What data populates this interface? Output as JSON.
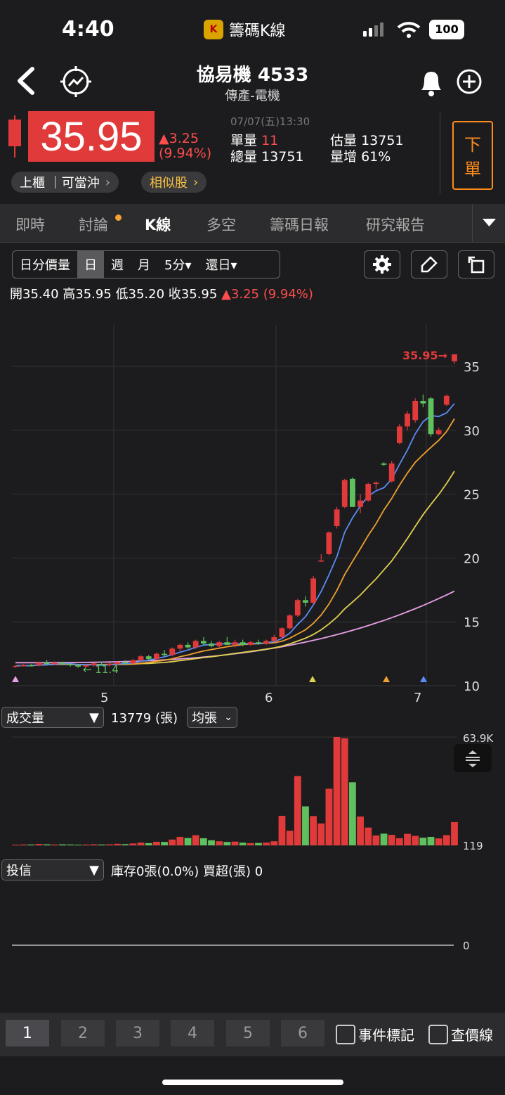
{
  "status": {
    "time": "4:40",
    "app_name": "籌碼K線",
    "battery": "100"
  },
  "header": {
    "title": "協易機 4533",
    "subtitle": "傳產-電機"
  },
  "quote": {
    "price": "35.95",
    "change": "▲3.25",
    "change_pct": "(9.94%)",
    "datetime": "07/07(五)13:30",
    "single_vol_label": "單量",
    "single_vol": "11",
    "est_vol_label": "估量",
    "est_vol": "13751",
    "total_vol_label": "總量",
    "total_vol": "13751",
    "vol_inc_label": "量增",
    "vol_inc": "61%",
    "market_tag": "上櫃 ｜可當沖",
    "similar": "相似股",
    "order_btn_1": "下",
    "order_btn_2": "單"
  },
  "tabs": [
    "即時",
    "討論",
    "K線",
    "多空",
    "籌碼日報",
    "研究報告"
  ],
  "toolbar": {
    "seg": [
      "日分價量",
      "日",
      "週",
      "月",
      "5分▾",
      "還日▾"
    ]
  },
  "ohlc": {
    "open_label": "開",
    "open": "35.40",
    "high_label": "高",
    "high": "35.95",
    "low_label": "低",
    "low": "35.20",
    "close_label": "收",
    "close": "35.95",
    "change": "▲3.25 (9.94%)"
  },
  "chart_data": {
    "type": "candlestick",
    "y_ticks": [
      35,
      30,
      25,
      20,
      15,
      10
    ],
    "x_ticks": [
      "5",
      "6",
      "7"
    ],
    "last_price_label": "35.95",
    "low_label": "11.4",
    "ylim": [
      10,
      38
    ],
    "candles": [
      [
        11.5,
        11.6,
        11.4,
        11.55
      ],
      [
        11.55,
        11.7,
        11.5,
        11.6
      ],
      [
        11.6,
        11.7,
        11.5,
        11.55
      ],
      [
        11.6,
        11.9,
        11.5,
        11.8
      ],
      [
        11.8,
        12.0,
        11.7,
        11.7
      ],
      [
        11.7,
        11.9,
        11.6,
        11.8
      ],
      [
        11.8,
        11.9,
        11.6,
        11.7
      ],
      [
        11.7,
        11.8,
        11.5,
        11.6
      ],
      [
        11.6,
        11.7,
        11.4,
        11.5
      ],
      [
        11.5,
        11.7,
        11.4,
        11.6
      ],
      [
        11.6,
        11.8,
        11.5,
        11.75
      ],
      [
        11.7,
        11.9,
        11.6,
        11.6
      ],
      [
        11.6,
        11.8,
        11.5,
        11.7
      ],
      [
        11.7,
        11.9,
        11.6,
        11.85
      ],
      [
        11.85,
        12.0,
        11.7,
        11.75
      ],
      [
        11.75,
        12.1,
        11.7,
        12.0
      ],
      [
        12.0,
        12.4,
        11.9,
        12.3
      ],
      [
        12.3,
        12.4,
        12.0,
        12.1
      ],
      [
        12.1,
        12.6,
        12.0,
        12.5
      ],
      [
        12.5,
        12.8,
        12.3,
        12.4
      ],
      [
        12.4,
        13.0,
        12.3,
        12.9
      ],
      [
        12.9,
        13.3,
        12.7,
        13.2
      ],
      [
        13.2,
        13.4,
        12.9,
        13.0
      ],
      [
        13.0,
        13.6,
        12.9,
        13.5
      ],
      [
        13.5,
        13.8,
        13.2,
        13.3
      ],
      [
        13.3,
        13.5,
        13.0,
        13.1
      ],
      [
        13.1,
        13.5,
        13.0,
        13.4
      ],
      [
        13.4,
        13.8,
        13.2,
        13.2
      ],
      [
        13.2,
        13.6,
        13.0,
        13.4
      ],
      [
        13.4,
        13.6,
        13.1,
        13.2
      ],
      [
        13.2,
        13.5,
        13.1,
        13.4
      ],
      [
        13.4,
        13.6,
        13.2,
        13.3
      ],
      [
        13.3,
        13.6,
        13.2,
        13.5
      ],
      [
        13.5,
        14.0,
        13.4,
        13.8
      ],
      [
        13.8,
        14.6,
        13.7,
        14.5
      ],
      [
        14.5,
        15.6,
        14.4,
        15.5
      ],
      [
        15.5,
        16.8,
        15.4,
        16.7
      ],
      [
        16.7,
        17.0,
        16.2,
        16.5
      ],
      [
        16.5,
        18.6,
        16.4,
        18.4
      ],
      [
        19.8,
        20.3,
        19.7,
        19.8
      ],
      [
        20.3,
        22.1,
        20.2,
        22.0
      ],
      [
        22.5,
        24.0,
        22.3,
        23.8
      ],
      [
        24.0,
        26.2,
        23.9,
        26.1
      ],
      [
        26.2,
        26.3,
        24.0,
        24.0
      ],
      [
        24.0,
        25.0,
        23.5,
        24.5
      ],
      [
        24.5,
        25.9,
        24.4,
        25.8
      ],
      [
        25.8,
        26.0,
        25.4,
        25.9
      ],
      [
        27.4,
        27.5,
        27.2,
        27.3
      ],
      [
        26.0,
        27.6,
        25.9,
        27.4
      ],
      [
        29.0,
        30.5,
        28.9,
        30.3
      ],
      [
        30.3,
        31.5,
        30.0,
        31.3
      ],
      [
        30.8,
        32.5,
        30.6,
        32.3
      ],
      [
        32.3,
        32.8,
        31.8,
        32.1
      ],
      [
        32.5,
        32.6,
        29.5,
        29.7
      ],
      [
        29.7,
        30.2,
        29.6,
        30.0
      ],
      [
        32.0,
        32.8,
        31.9,
        32.7
      ],
      [
        35.4,
        35.95,
        35.2,
        35.95
      ]
    ],
    "volume": {
      "label": "成交量",
      "value": "13779 (張)",
      "mode": "均張",
      "max_label": "63.9K",
      "min_label": "119"
    },
    "chip": {
      "label": "投信",
      "info": "庫存0張(0.0%) 買超(張) 0",
      "zero_label": "0"
    }
  },
  "bottom": {
    "tabs": [
      "1",
      "2",
      "3",
      "4",
      "5",
      "6"
    ],
    "event_mark": "事件標記",
    "price_line": "查價線"
  },
  "colors": {
    "up": "#e03a3a",
    "down": "#5ec15e",
    "ma5": "#5a8cf5",
    "ma10": "#f0a030",
    "ma20": "#e0d050",
    "ma60": "#e8a0e8"
  }
}
